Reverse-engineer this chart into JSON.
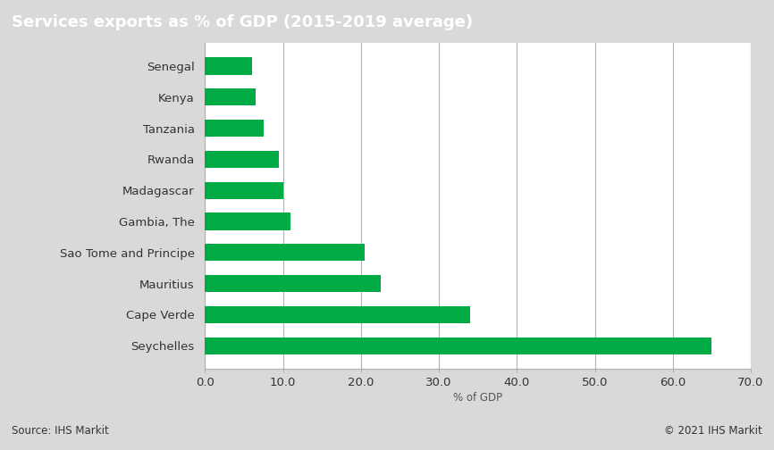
{
  "title": "Services exports as % of GDP (2015-2019 average)",
  "categories": [
    "Senegal",
    "Kenya",
    "Tanzania",
    "Rwanda",
    "Madagascar",
    "Gambia, The",
    "Sao Tome and Principe",
    "Mauritius",
    "Cape Verde",
    "Seychelles"
  ],
  "values": [
    6.0,
    6.5,
    7.5,
    9.5,
    10.0,
    11.0,
    20.5,
    22.5,
    34.0,
    65.0
  ],
  "bar_color": "#00aa44",
  "xlabel": "% of GDP",
  "xlim": [
    0,
    70.0
  ],
  "xticks": [
    0.0,
    10.0,
    20.0,
    30.0,
    40.0,
    50.0,
    60.0,
    70.0
  ],
  "title_bg_color": "#7f7f7f",
  "title_text_color": "#ffffff",
  "plot_bg_color": "#ffffff",
  "fig_bg_color": "#d9d9d9",
  "grid_color": "#b0b0b0",
  "source_left": "Source: IHS Markit",
  "source_right": "© 2021 IHS Markit",
  "title_fontsize": 13,
  "axis_fontsize": 9.5,
  "xlabel_fontsize": 8.5,
  "source_fontsize": 8.5,
  "bar_height": 0.55
}
